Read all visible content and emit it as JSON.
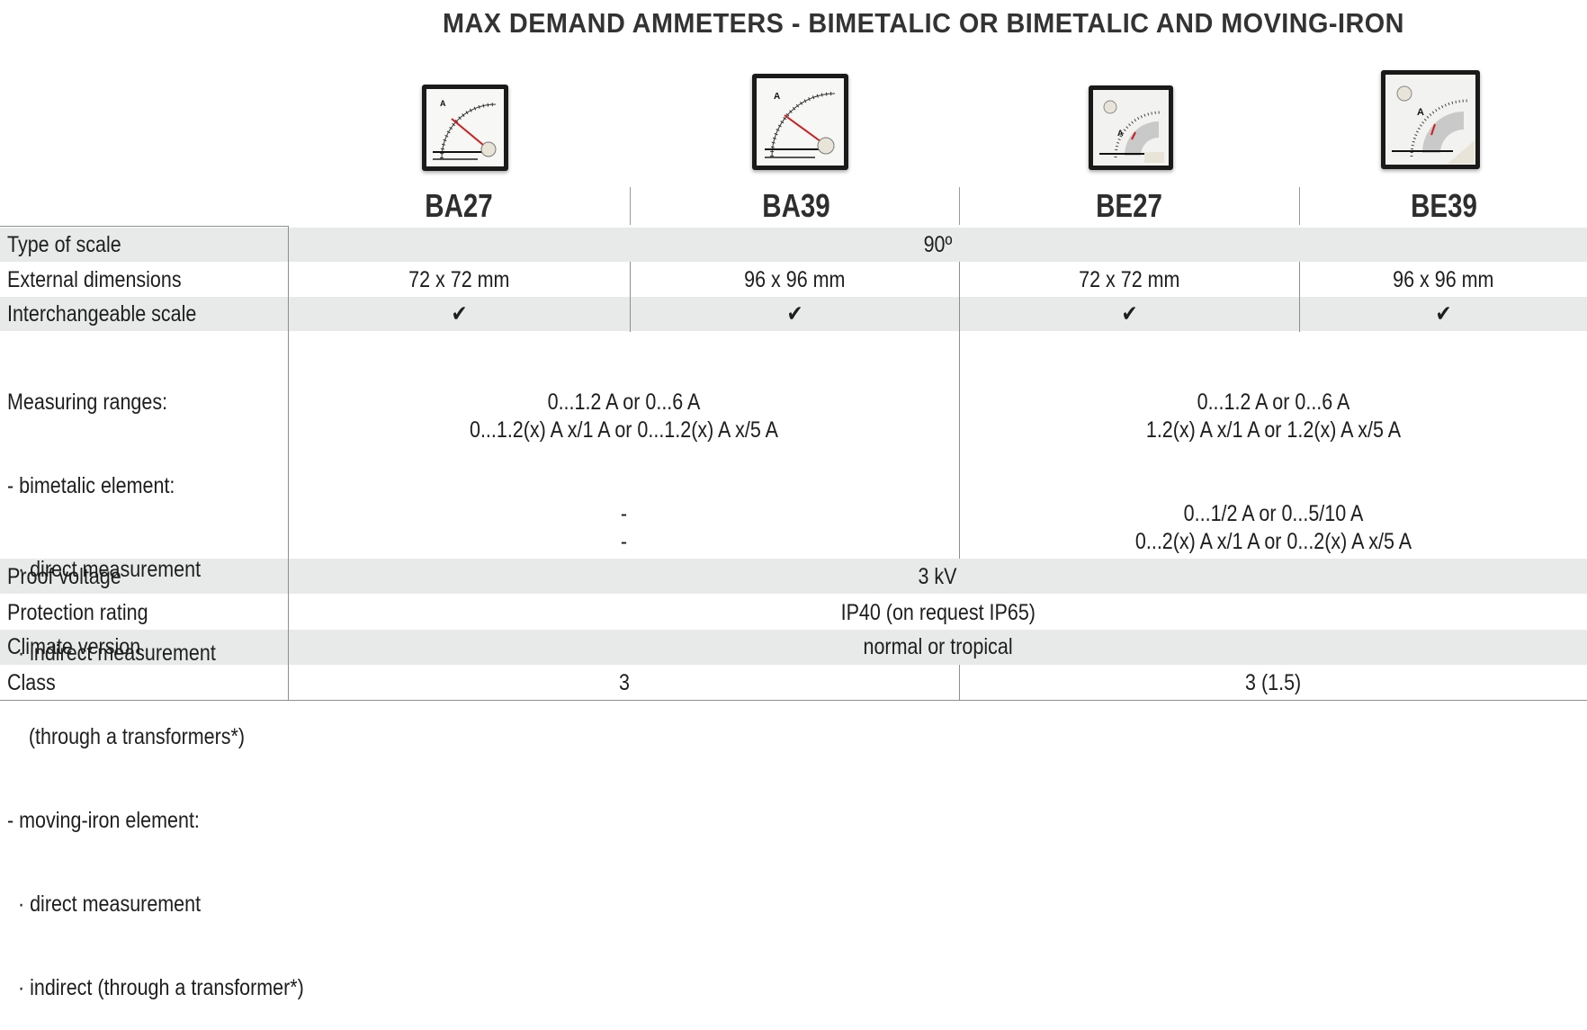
{
  "title": "MAX DEMAND AMMETERS - BIMETALIC OR BIMETALIC AND MOVING-IRON",
  "models": [
    "BA27",
    "BA39",
    "BE27",
    "BE39"
  ],
  "meter_icons": [
    "ammeter-ba27-icon",
    "ammeter-ba39-icon",
    "ammeter-be27-icon",
    "ammeter-be39-icon"
  ],
  "colors": {
    "header_bar": "#173b5c",
    "row_shade": "#e8eaea",
    "needle": "#cc1f1f"
  },
  "rows": {
    "type_of_scale": {
      "label": "Type of scale",
      "value": "90º"
    },
    "external_dimensions": {
      "label": "External dimensions",
      "values": [
        "72 x 72 mm",
        "96 x 96 mm",
        "72 x 72 mm",
        "96 x 96 mm"
      ]
    },
    "interchangeable_scale": {
      "label": "Interchangeable scale",
      "values": [
        "✔",
        "✔",
        "✔",
        "✔"
      ]
    },
    "measuring_ranges": {
      "label_lines": [
        "Measuring ranges:",
        "- bimetalic element:",
        "  · direct measurement",
        "  · indirect measurement",
        "    (through a transformers*)",
        "- moving-iron element:",
        "  · direct measurement",
        "  · indirect (through a transformer*)"
      ],
      "ba_bimetal_direct": "0...1.2 A or 0...6 A",
      "ba_bimetal_indirect": "0...1.2(x) A x/1 A or 0...1.2(x) A x/5 A",
      "ba_moving_direct": "-",
      "ba_moving_indirect": "-",
      "be_bimetal_direct": "0...1.2 A or 0...6 A",
      "be_bimetal_indirect": "1.2(x) A x/1 A or 1.2(x) A x/5 A",
      "be_moving_direct": "0...1/2 A or 0...5/10 A",
      "be_moving_indirect": "0...2(x) A x/1 A or 0...2(x) A x/5 A"
    },
    "proof_voltage": {
      "label": "Proof voltage",
      "value": "3 kV"
    },
    "protection_rating": {
      "label": "Protection rating",
      "value": "IP40 (on request IP65)"
    },
    "climate_version": {
      "label": "Climate version",
      "value": "normal or tropical"
    },
    "class": {
      "label": "Class",
      "values": [
        "3",
        "3 (1.5)"
      ]
    }
  }
}
